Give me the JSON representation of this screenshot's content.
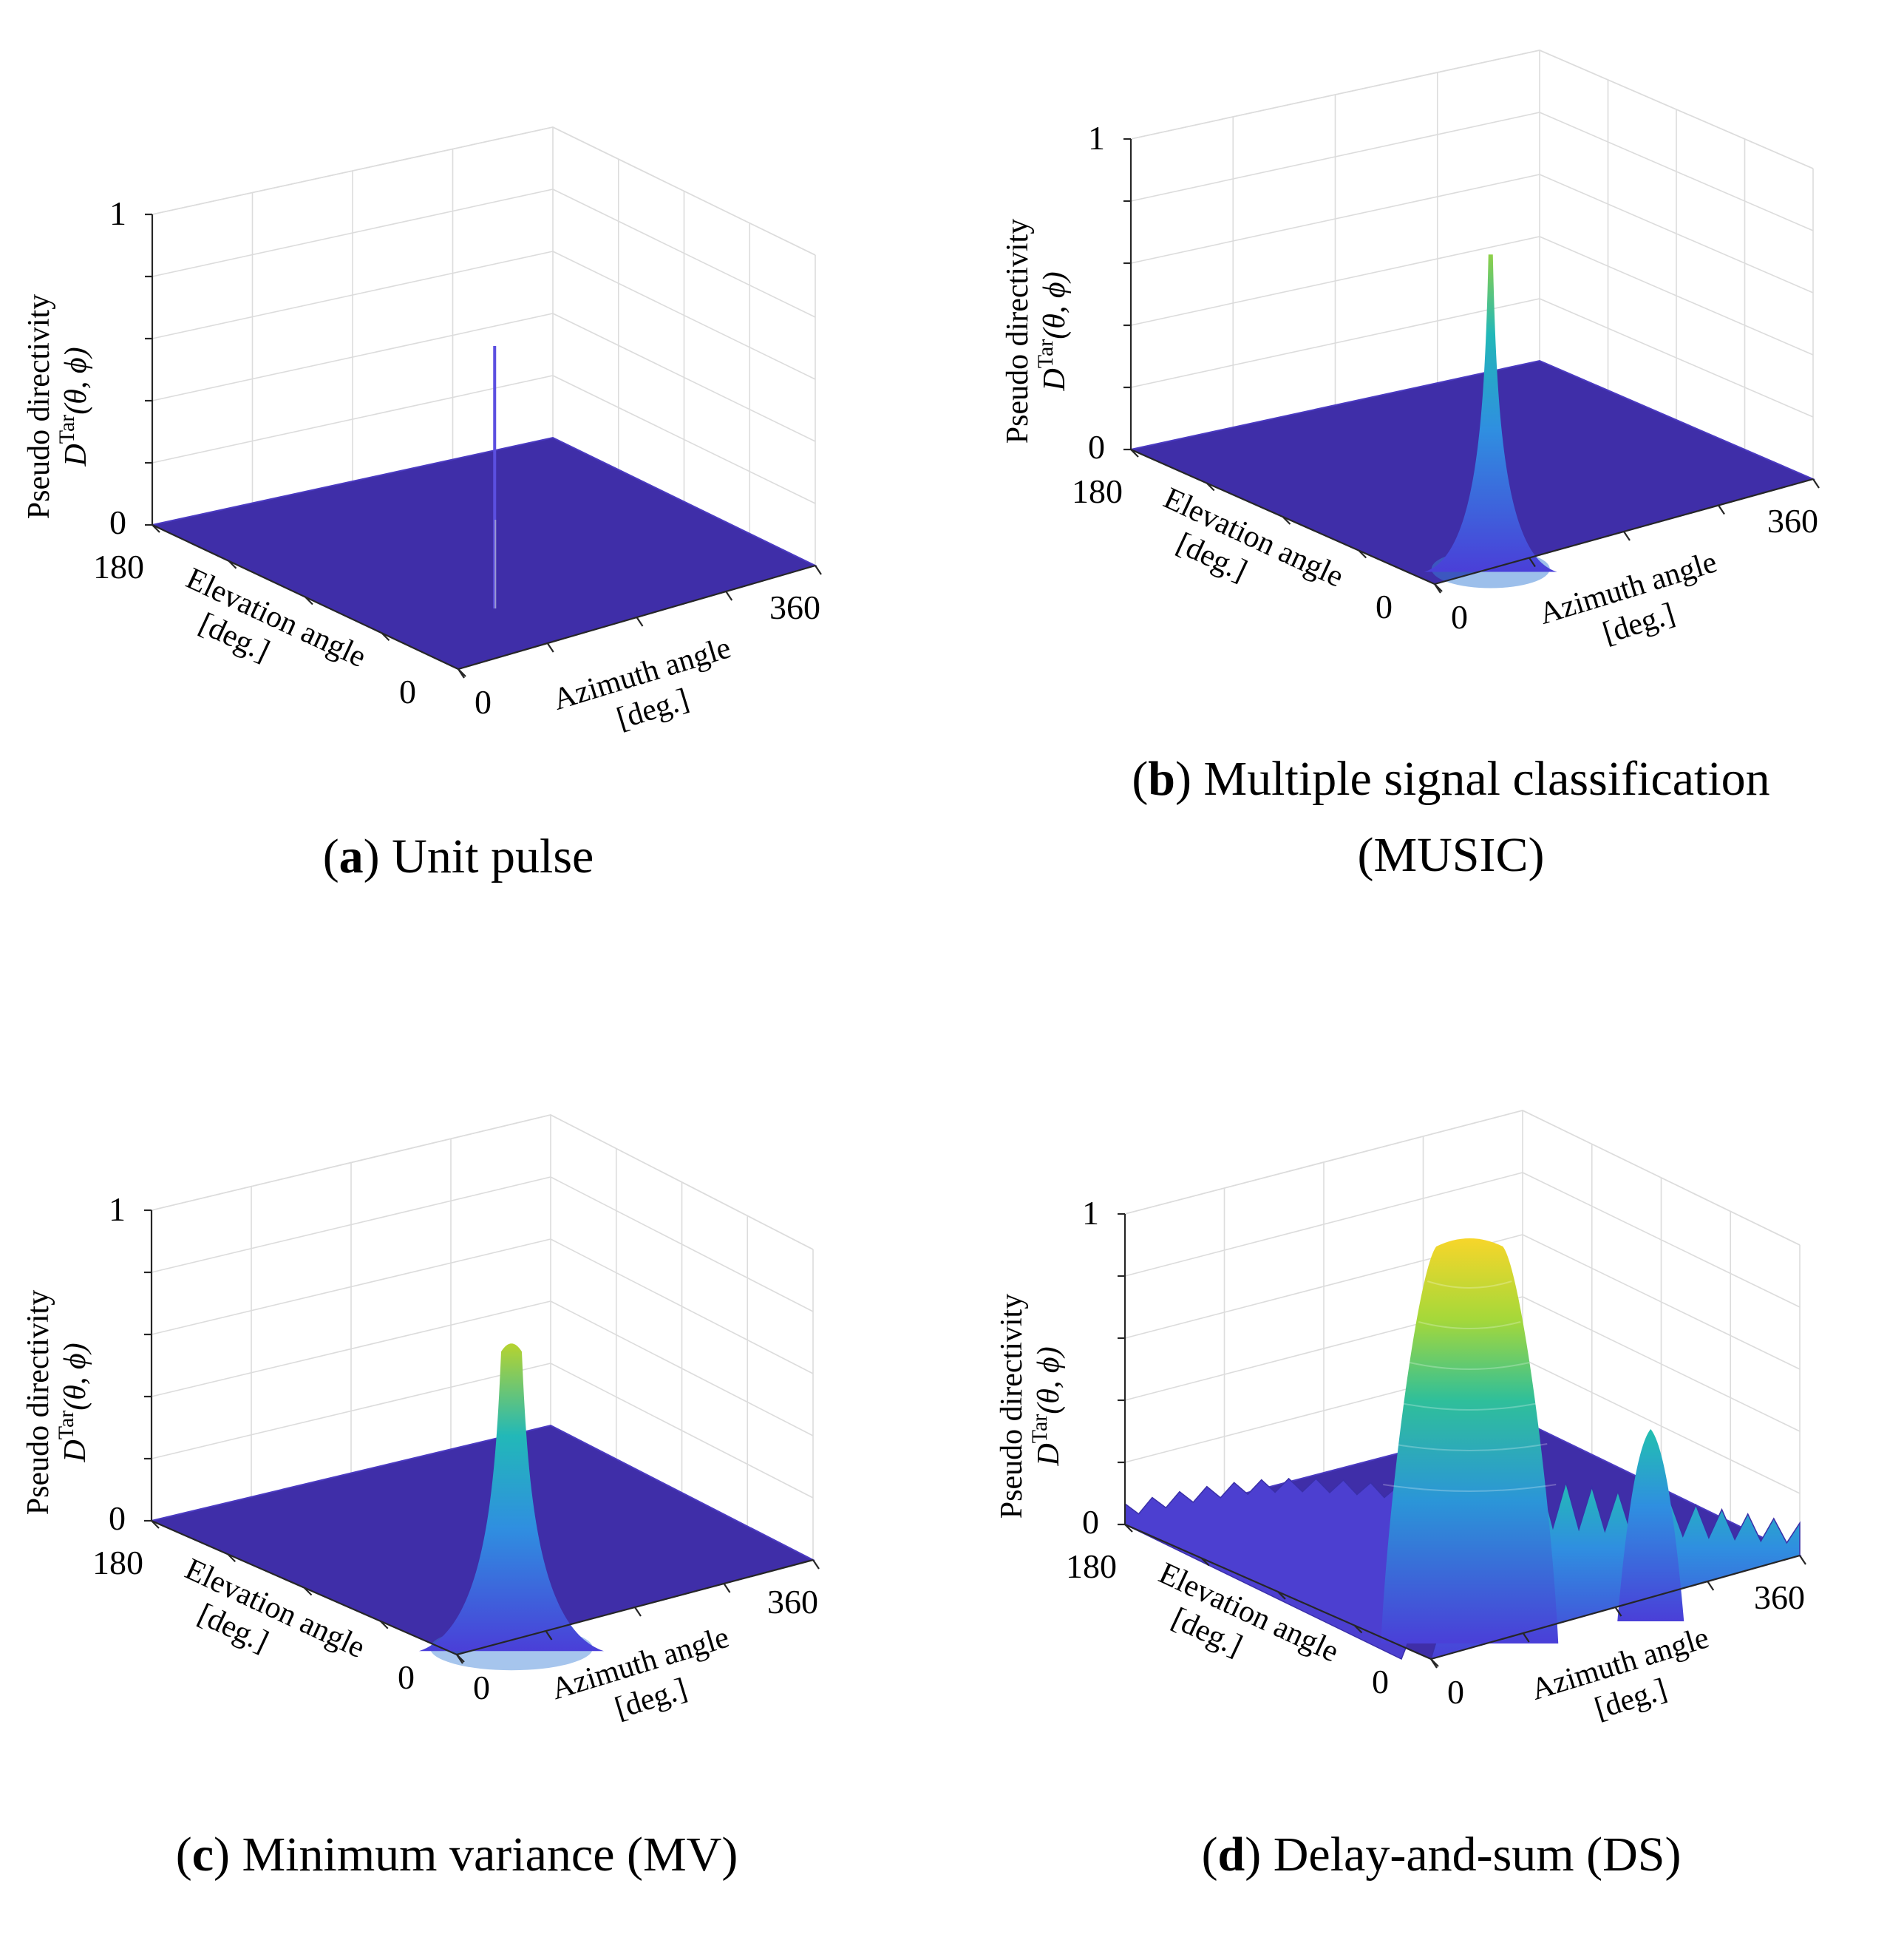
{
  "chart_data": [
    {
      "id": "a",
      "type": "surface3d",
      "caption_letter": "a",
      "caption_text": " Unit pulse",
      "zlabel_line1": "Pseudo directivity",
      "zlabel_line2": "D",
      "zlabel_sup": "Tar",
      "zlabel_args": "(θ, ϕ)",
      "xlabel_line1": "Azimuth angle",
      "xlabel_line2": "[deg.]",
      "ylabel_line1": "Elevation angle",
      "ylabel_line2": "[deg.]",
      "z_ticks": [
        "0",
        "1"
      ],
      "x_ticks": [
        "0",
        "360"
      ],
      "y_ticks": [
        "180",
        "0"
      ],
      "zlim": [
        0,
        1
      ],
      "xlim": [
        0,
        360
      ],
      "ylim": [
        0,
        180
      ],
      "peak": {
        "azimuth": 180,
        "elevation": 90,
        "value": 0.75,
        "width": "impulse"
      }
    },
    {
      "id": "b",
      "type": "surface3d",
      "caption_letter": "b",
      "caption_text": " Multiple signal classification",
      "caption_text2": "(MUSIC)",
      "zlabel_line1": "Pseudo directivity",
      "zlabel_line2": "D",
      "zlabel_sup": "Tar",
      "zlabel_args": "(θ, ϕ)",
      "xlabel_line1": "Azimuth angle",
      "xlabel_line2": "[deg.]",
      "ylabel_line1": "Elevation angle",
      "ylabel_line2": "[deg.]",
      "z_ticks": [
        "0",
        "1"
      ],
      "x_ticks": [
        "0",
        "360"
      ],
      "y_ticks": [
        "180",
        "0"
      ],
      "zlim": [
        0,
        1
      ],
      "xlim": [
        0,
        360
      ],
      "ylim": [
        0,
        180
      ],
      "peak": {
        "azimuth": 180,
        "elevation": 90,
        "value": 0.76,
        "width": "narrow"
      }
    },
    {
      "id": "c",
      "type": "surface3d",
      "caption_letter": "c",
      "caption_text": " Minimum variance (MV)",
      "zlabel_line1": "Pseudo directivity",
      "zlabel_line2": "D",
      "zlabel_sup": "Tar",
      "zlabel_args": "(θ, ϕ)",
      "xlabel_line1": "Azimuth angle",
      "xlabel_line2": "[deg.]",
      "ylabel_line1": "Elevation angle",
      "ylabel_line2": "[deg.]",
      "z_ticks": [
        "0",
        "1"
      ],
      "x_ticks": [
        "0",
        "360"
      ],
      "y_ticks": [
        "180",
        "0"
      ],
      "zlim": [
        0,
        1
      ],
      "xlim": [
        0,
        360
      ],
      "ylim": [
        0,
        180
      ],
      "peak": {
        "azimuth": 180,
        "elevation": 90,
        "value": 0.75,
        "width": "medium"
      }
    },
    {
      "id": "d",
      "type": "surface3d",
      "caption_letter": "d",
      "caption_text": " Delay-and-sum (DS)",
      "zlabel_line1": "Pseudo directivity",
      "zlabel_line2": "D",
      "zlabel_sup": "Tar",
      "zlabel_args": "(θ, ϕ)",
      "xlabel_line1": "Azimuth angle",
      "xlabel_line2": "[deg.]",
      "ylabel_line1": "Elevation angle",
      "ylabel_line2": "[deg.]",
      "z_ticks": [
        "0",
        "1"
      ],
      "x_ticks": [
        "0",
        "360"
      ],
      "y_ticks": [
        "180",
        "0"
      ],
      "zlim": [
        0,
        1
      ],
      "xlim": [
        0,
        360
      ],
      "ylim": [
        0,
        180
      ],
      "peak": {
        "azimuth": 180,
        "elevation": 90,
        "value": 0.75,
        "width": "broad"
      },
      "sidelobes": [
        {
          "azimuth": 300,
          "elevation": 60,
          "value": 0.4
        },
        {
          "azimuth": 60,
          "elevation": 140,
          "value": 0.2
        },
        {
          "azimuth": 240,
          "elevation": 110,
          "value": 0.35
        }
      ]
    }
  ],
  "colors": {
    "floor": "#3f2ea8",
    "low": "#4a3fd8",
    "mid": "#2ea6c8",
    "high": "#3ec090",
    "top": "#f2d22b",
    "grid": "#dcdcdc",
    "axis": "#262626"
  }
}
